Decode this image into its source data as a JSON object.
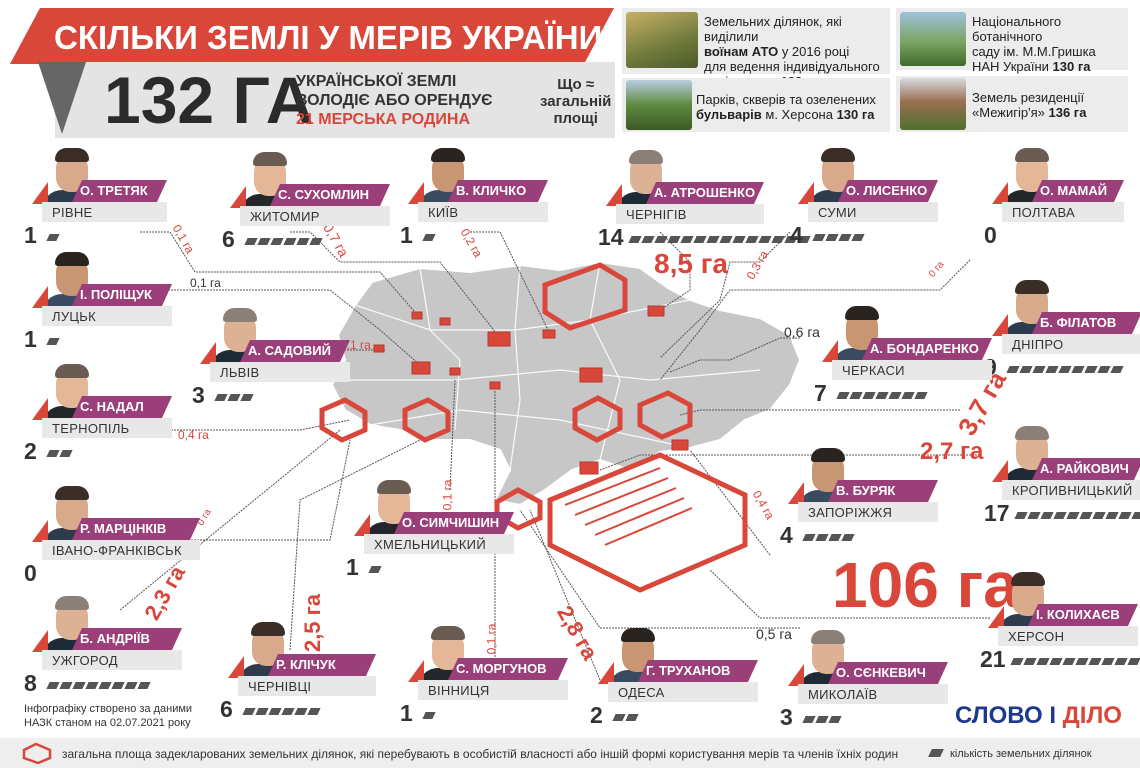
{
  "title": "СКІЛЬКИ ЗЕМЛІ У МЕРІВ УКРАЇНИ",
  "lead": {
    "total": "132 ГА",
    "line1": "УКРАЇНСЬКОЇ ЗЕМЛІ",
    "line2": "ВОЛОДІЄ АБО ОРЕНДУЄ",
    "line3": "21 МЕРСЬКА РОДИНА"
  },
  "compare_title": [
    "Що ≈",
    "загальній",
    "площі"
  ],
  "comparisons": [
    {
      "line1": "Земельних ділянок, які виділили",
      "line2_bold": "воїнам АТО",
      "line2_rest": " у 2016 році",
      "line3": "для ведення індивідуального",
      "line4_rest": "садівництва ",
      "line4_bold": "132 га"
    },
    {
      "line1": "Національного ботанічного",
      "line2": "саду ім. М.М.Гришка",
      "line3_rest": "НАН України ",
      "line3_bold": "130 га"
    },
    {
      "line1": "Парків, скверів та озеленених",
      "line2_bold": "бульварів",
      "line2_rest": " м. Херсона ",
      "line2_bold2": "130 га"
    },
    {
      "line1": "Земель резиденції",
      "line2_rest": "«Межигір'я» ",
      "line2_bold": "136 га"
    }
  ],
  "mayors": [
    {
      "name": "О. ТРЕТЯК",
      "city": "РІВНЕ",
      "count": "1",
      "plots": 1
    },
    {
      "name": "С. СУХОМЛИН",
      "city": "ЖИТОМИР",
      "count": "6",
      "plots": 6
    },
    {
      "name": "В. КЛИЧКО",
      "city": "КИЇВ",
      "count": "1",
      "plots": 1
    },
    {
      "name": "А. АТРОШЕНКО",
      "city": "ЧЕРНІГІВ",
      "count": "14",
      "plots": 14
    },
    {
      "name": "О. ЛИСЕНКО",
      "city": "СУМИ",
      "count": "4",
      "plots": 4
    },
    {
      "name": "О. МАМАЙ",
      "city": "ПОЛТАВА",
      "count": "0",
      "plots": 0
    },
    {
      "name": "І. ПОЛІЩУК",
      "city": "ЛУЦЬК",
      "count": "1",
      "plots": 1
    },
    {
      "name": "А. САДОВИЙ",
      "city": "ЛЬВІВ",
      "count": "3",
      "plots": 3
    },
    {
      "name": "Б. ФІЛАТОВ",
      "city": "ДНІПРО",
      "count": "9",
      "plots": 9
    },
    {
      "name": "С. НАДАЛ",
      "city": "ТЕРНОПІЛЬ",
      "count": "2",
      "plots": 2
    },
    {
      "name": "А. БОНДАРЕНКО",
      "city": "ЧЕРКАСИ",
      "count": "7",
      "plots": 7
    },
    {
      "name": "А. РАЙКОВИЧ",
      "city": "КРОПИВНИЦЬКИЙ",
      "count": "17",
      "plots": 17
    },
    {
      "name": "Р. МАРЦІНКІВ",
      "city": "ІВАНО-ФРАНКІВСЬК",
      "count": "0",
      "plots": 0
    },
    {
      "name": "О. СИМЧИШИН",
      "city": "ХМЕЛЬНИЦЬКИЙ",
      "count": "1",
      "plots": 1
    },
    {
      "name": "В. БУРЯК",
      "city": "ЗАПОРІЖЖЯ",
      "count": "4",
      "plots": 4
    },
    {
      "name": "Б. АНДРІЇВ",
      "city": "УЖГОРОД",
      "count": "8",
      "plots": 8
    },
    {
      "name": "Р. КЛІЧУК",
      "city": "ЧЕРНІВЦІ",
      "count": "6",
      "plots": 6
    },
    {
      "name": "С. МОРГУНОВ",
      "city": "ВІННИЦЯ",
      "count": "1",
      "plots": 1
    },
    {
      "name": "Г. ТРУХАНОВ",
      "city": "ОДЕСА",
      "count": "2",
      "plots": 2
    },
    {
      "name": "О. СЄНКЕВИЧ",
      "city": "МИКОЛАЇВ",
      "count": "3",
      "plots": 3
    },
    {
      "name": "І. КОЛИХАЄВ",
      "city": "ХЕРСОН",
      "count": "21",
      "plots": 21
    }
  ],
  "areas": {
    "rivne": "0,1 га",
    "zhytomyr": "0,7 га",
    "kyiv": "0,2 га",
    "chernihiv": "8,5 га",
    "sumy": "0,3 га",
    "poltava": "0 га",
    "lutsk": "0,1 га",
    "lviv": "0,1 га",
    "ternopil": "0,4 га",
    "cherkasy": "0,6 га",
    "dnipro": "3,7 га",
    "kropyvnytskyi": "2,7 га",
    "ivano_frankivsk": "0 га",
    "khmelnytskyi": "0,1 га",
    "zaporizhzhia": "0,4 га",
    "uzhhorod": "2,3 га",
    "chernivtsi": "2,5 га",
    "vinnytsia": "0,1 га",
    "odesa": "2,8 га",
    "mykolaiv": "0,5 га",
    "kherson": "106 га"
  },
  "note": [
    "Інфографіку створено за даними",
    "НАЗК станом на 02.07.2021 року"
  ],
  "logo": {
    "part1": "СЛОВО",
    "part2": "І",
    "part3": "ДІЛО"
  },
  "legend": {
    "area": "загальна площа задекларованих земельних ділянок, які перебувають в особистій власності або іншій формі користування мерів та членів їхніх родин",
    "count": "кількість земельних ділянок"
  },
  "colors": {
    "red": "#d9463a",
    "purple": "#9a3f7a",
    "grey": "#e4e4e4",
    "dark": "#333333"
  }
}
